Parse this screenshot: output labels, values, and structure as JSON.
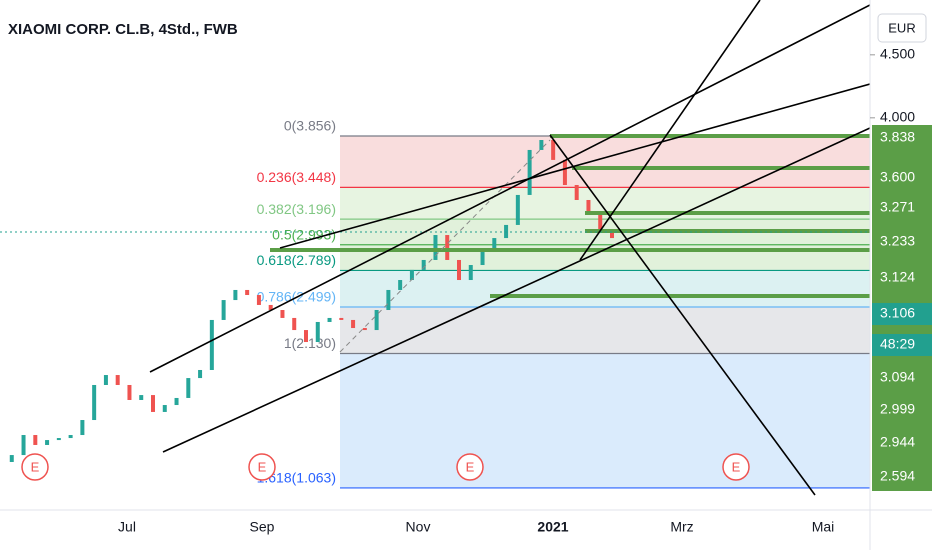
{
  "chart_data": {
    "type": "candlestick",
    "title": "XIAOMI CORP. CL.B, 4Std., FWB",
    "currency": "EUR",
    "ylim": [
      0.888,
      4.935
    ],
    "yticks": [
      {
        "value": 4.5,
        "label": "4.500"
      },
      {
        "value": 4.0,
        "label": "4.000"
      }
    ],
    "x_labels": [
      "Jul",
      "Sep",
      "Nov",
      "2021",
      "Mrz",
      "Mai"
    ],
    "series": [
      {
        "name": "XIAOMI CORP. CL.B",
        "up_color": "#26a69a",
        "down_color": "#ef5350",
        "values": [
          1.269,
          1.324,
          1.483,
          1.404,
          1.443,
          1.459,
          1.483,
          1.602,
          1.88,
          1.959,
          1.88,
          1.761,
          1.8,
          1.666,
          1.721,
          1.777,
          1.935,
          1.999,
          2.396,
          2.554,
          2.634,
          2.594,
          2.515,
          2.475,
          2.412,
          2.316,
          2.221,
          2.38,
          2.412,
          2.396,
          2.332,
          2.316,
          2.475,
          2.634,
          2.713,
          2.793,
          2.872,
          3.07,
          2.872,
          2.713,
          2.832,
          2.951,
          3.046,
          3.15,
          3.388,
          3.745,
          3.824,
          3.666,
          3.467,
          3.348,
          3.229,
          3.11,
          3.046
        ]
      }
    ],
    "fib_levels": [
      {
        "label": "0(3.856)",
        "value": 3.856,
        "color": "#787b86",
        "fill": "#f8d7d7"
      },
      {
        "label": "0.236(3.448)",
        "value": 3.448,
        "color": "#f23645",
        "fill": "#e3f2dc"
      },
      {
        "label": "0.382(3.196)",
        "value": 3.196,
        "color": "#81c784",
        "fill": "#dcefd5"
      },
      {
        "label": "0.5(2.993)",
        "value": 2.993,
        "color": "#4caf50",
        "fill": "#dcefd5"
      },
      {
        "label": "0.618(2.789)",
        "value": 2.789,
        "color": "#089981",
        "fill": "#d6eef0"
      },
      {
        "label": "0.786(2.499)",
        "value": 2.499,
        "color": "#64b5f6",
        "fill": "#e2e3e6"
      },
      {
        "label": "1(2.130)",
        "value": 2.13,
        "color": "#787b86",
        "fill": "#d4e7fb"
      },
      {
        "label": "1.618(1.063)",
        "value": 1.063,
        "color": "#2962ff",
        "fill": "none"
      }
    ],
    "price_tags": [
      {
        "label": "3.838",
        "color": "#5b9e47"
      },
      {
        "label": "3.600",
        "color": "#5b9e47"
      },
      {
        "label": "3.271",
        "color": "#5b9e47"
      },
      {
        "label": "3.233",
        "color": "#5b9e47"
      },
      {
        "label": "3.124",
        "color": "#5b9e47"
      },
      {
        "label": "3.106",
        "color": "#22a08f"
      },
      {
        "label": "48:29",
        "color": "#22a08f"
      },
      {
        "label": "3.094",
        "color": "#5b9e47"
      },
      {
        "label": "2.999",
        "color": "#5b9e47"
      },
      {
        "label": "2.944",
        "color": "#5b9e47"
      },
      {
        "label": "2.594",
        "color": "#5b9e47"
      }
    ],
    "earnings_markers": [
      "E",
      "E",
      "E",
      "E"
    ]
  }
}
